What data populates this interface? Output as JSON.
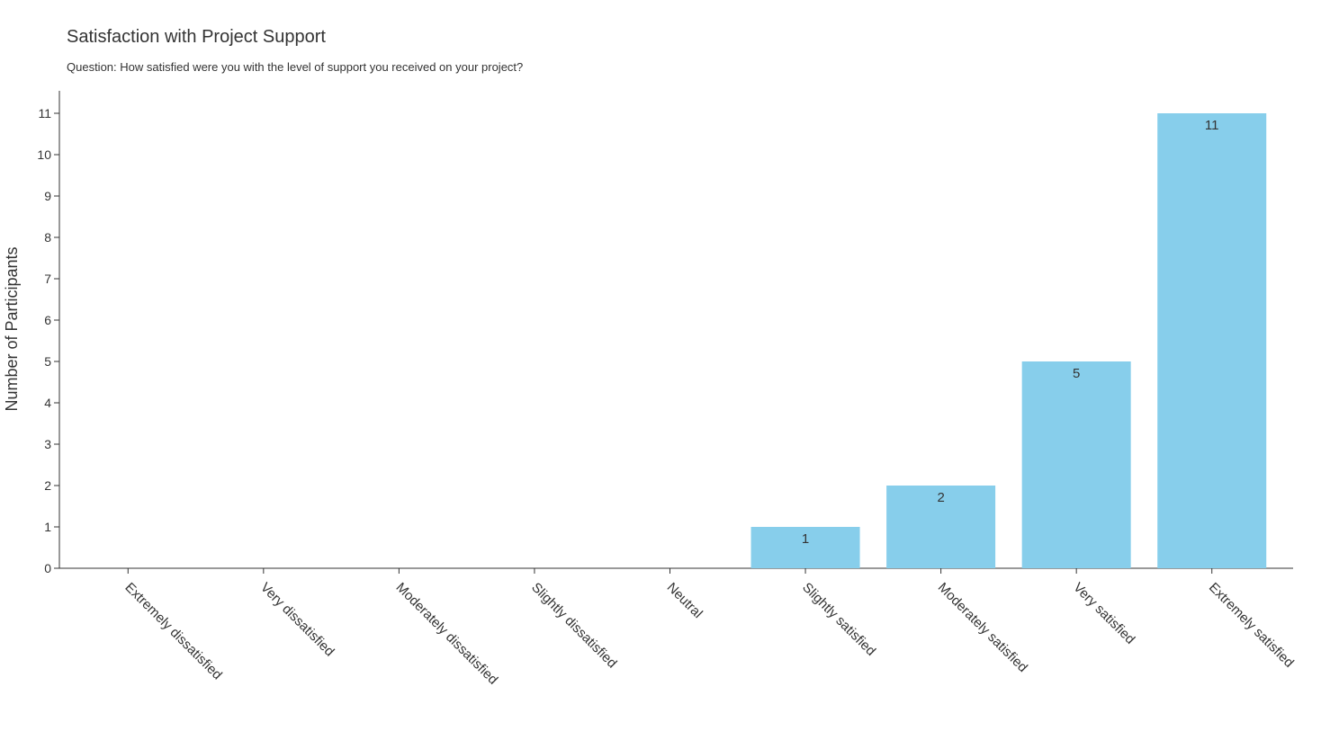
{
  "chart_data": {
    "type": "bar",
    "title": "Satisfaction with Project Support",
    "subtitle": "Question: How satisfied were you with the level of support you received on your project?",
    "xlabel": "",
    "ylabel": "Number of Participants",
    "categories": [
      "Extremely dissatisfied",
      "Very dissatisfied",
      "Moderately dissatisfied",
      "Slightly dissatisfied",
      "Neutral",
      "Slightly satisfied",
      "Moderately satisfied",
      "Very satisfied",
      "Extremely satisfied"
    ],
    "values": [
      0,
      0,
      0,
      0,
      0,
      1,
      2,
      5,
      11
    ],
    "ylim": [
      0,
      11
    ],
    "yticks": [
      0,
      1,
      2,
      3,
      4,
      5,
      6,
      7,
      8,
      9,
      10,
      11
    ],
    "data_labels": [
      "",
      "",
      "",
      "",
      "",
      "1",
      "2",
      "5",
      "11"
    ],
    "bar_color": "#87ceeb",
    "axis_color": "#333333",
    "text_color": "#333333",
    "grid": false,
    "legend": "none"
  }
}
